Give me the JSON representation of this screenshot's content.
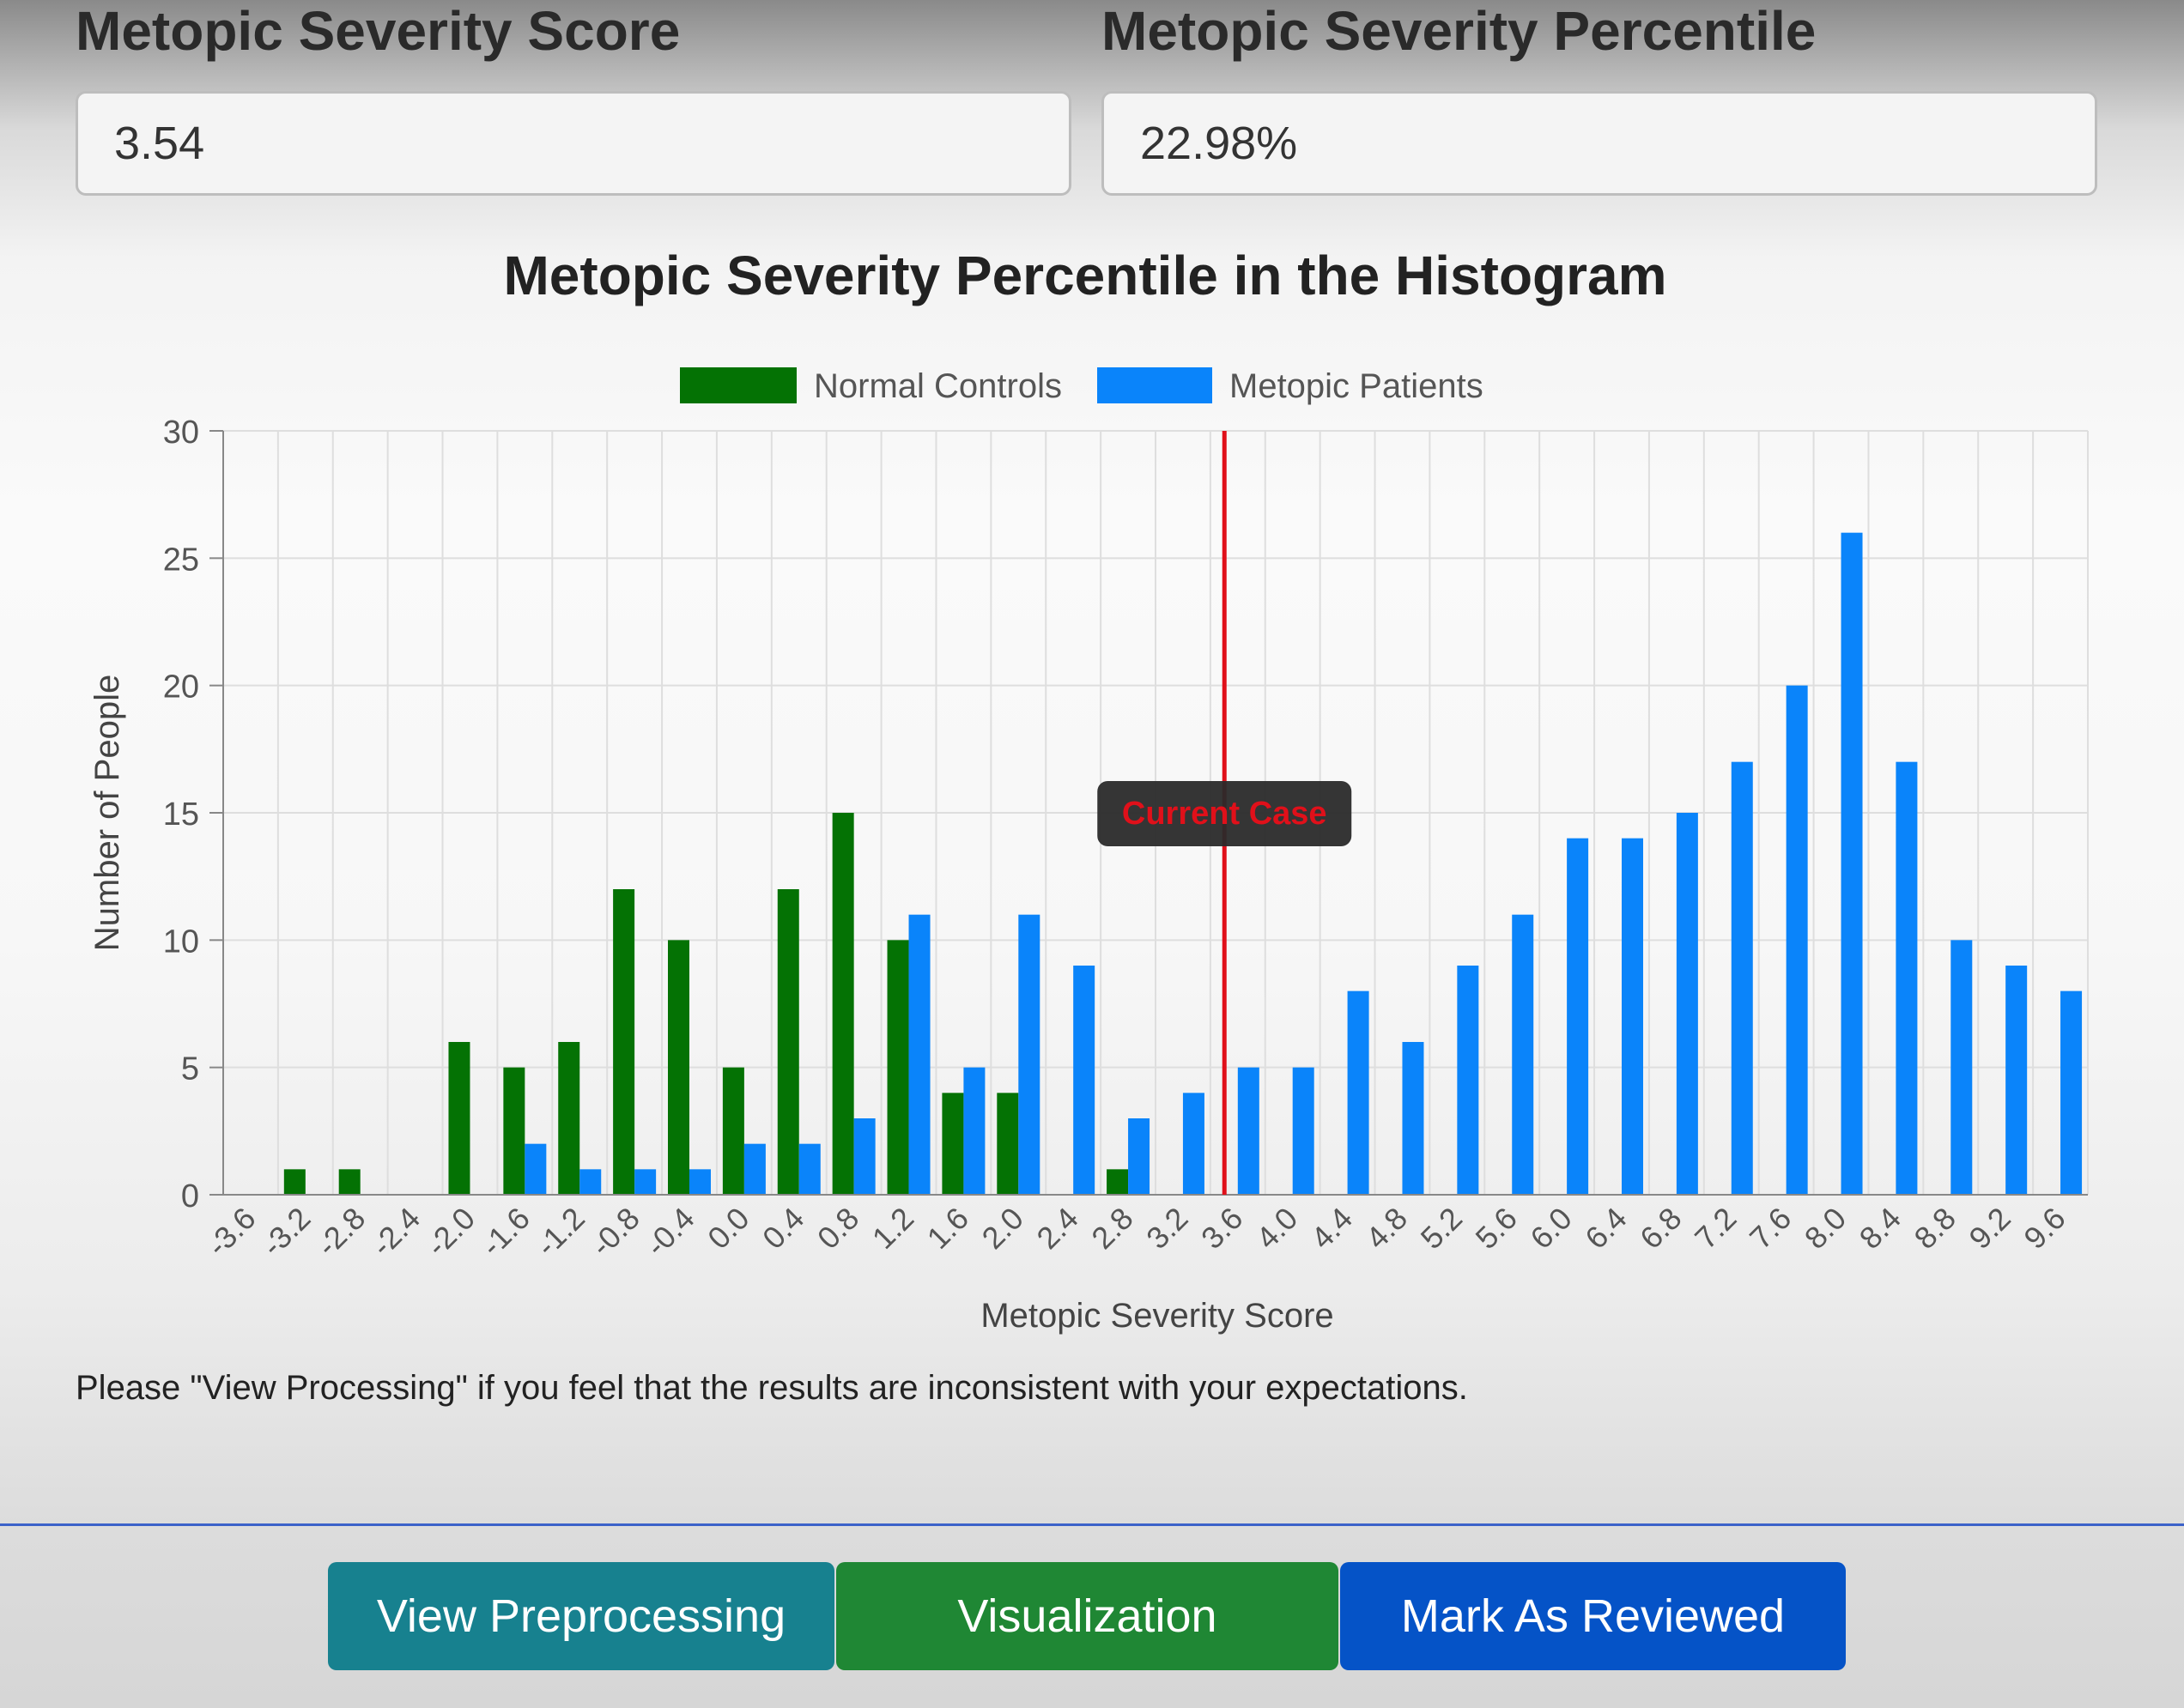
{
  "score": {
    "label": "Metopic Severity Score",
    "value": "3.54"
  },
  "percentile": {
    "label": "Metopic Severity Percentile",
    "value": "22.98%"
  },
  "chart_data": {
    "type": "bar",
    "title": "Metopic Severity Percentile in the Histogram",
    "xlabel": "Metopic Severity Score",
    "ylabel": "Number of People",
    "ylim": [
      0,
      30
    ],
    "yticks": [
      0,
      5,
      10,
      15,
      20,
      25,
      30
    ],
    "legend_position": "top",
    "grid": true,
    "categories": [
      "-3.6",
      "-3.2",
      "-2.8",
      "-2.4",
      "-2.0",
      "-1.6",
      "-1.2",
      "-0.8",
      "-0.4",
      "0.0",
      "0.4",
      "0.8",
      "1.2",
      "1.6",
      "2.0",
      "2.4",
      "2.8",
      "3.2",
      "3.6",
      "4.0",
      "4.4",
      "4.8",
      "5.2",
      "5.6",
      "6.0",
      "6.4",
      "6.8",
      "7.2",
      "7.6",
      "8.0",
      "8.4",
      "8.8",
      "9.2",
      "9.6"
    ],
    "series": [
      {
        "name": "Normal Controls",
        "color": "#047204",
        "values": [
          0,
          1,
          1,
          0,
          6,
          5,
          6,
          12,
          10,
          5,
          12,
          15,
          10,
          4,
          4,
          0,
          1,
          0,
          0,
          0,
          0,
          0,
          0,
          0,
          0,
          0,
          0,
          0,
          0,
          0,
          0,
          0,
          0,
          0
        ]
      },
      {
        "name": "Metopic Patients",
        "color": "#0a84fa",
        "values": [
          0,
          0,
          0,
          0,
          0,
          2,
          1,
          1,
          1,
          2,
          2,
          3,
          11,
          5,
          11,
          9,
          3,
          4,
          5,
          5,
          8,
          6,
          9,
          11,
          14,
          14,
          15,
          17,
          20,
          26,
          17,
          10,
          9,
          8
        ]
      }
    ],
    "marker": {
      "x": 3.54,
      "label": "Current Case",
      "color": "#e0101a"
    }
  },
  "note": "Please \"View Processing\" if you feel that the results are inconsistent with your expectations.",
  "buttons": {
    "preprocessing": "View Preprocessing",
    "visualization": "Visualization",
    "reviewed": "Mark As Reviewed"
  }
}
